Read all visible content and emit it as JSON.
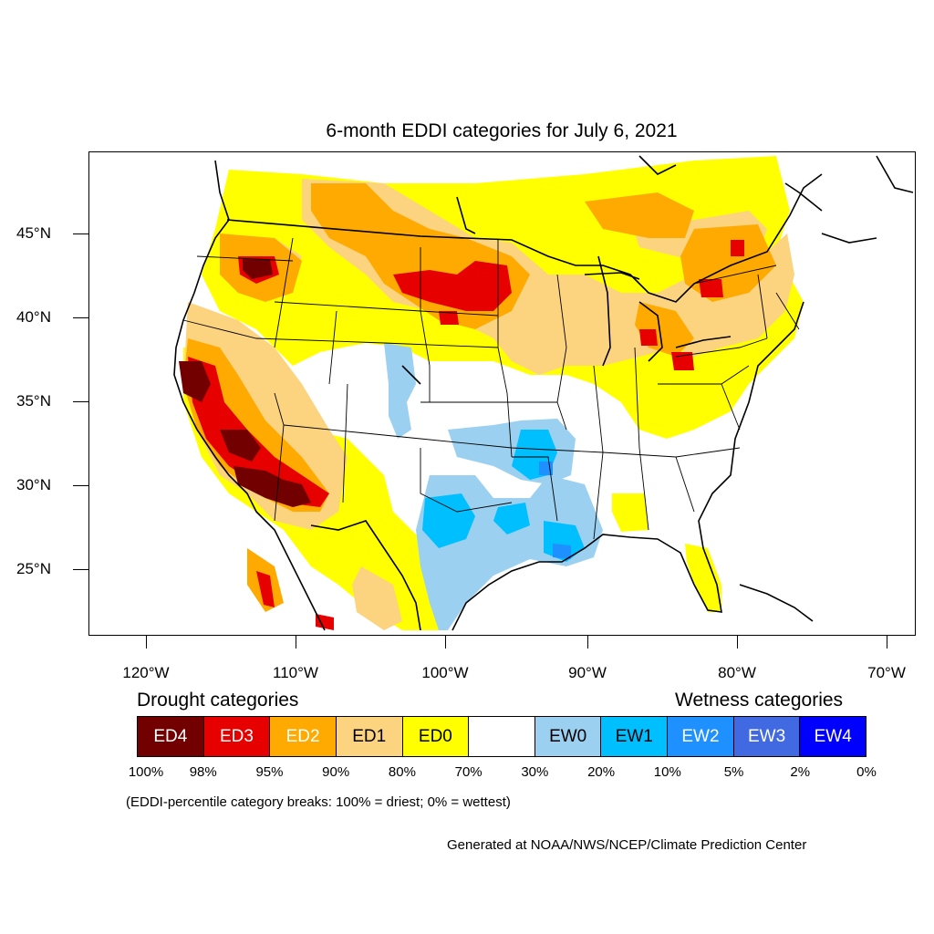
{
  "title": "6-month EDDI categories for July 6, 2021",
  "lat_labels": [
    "45°N",
    "40°N",
    "35°N",
    "30°N",
    "25°N"
  ],
  "lon_labels": [
    "120°W",
    "110°W",
    "100°W",
    "90°W",
    "80°W",
    "70°W"
  ],
  "legend": {
    "drought_heading": "Drought categories",
    "wetness_heading": "Wetness categories",
    "categories": [
      {
        "label": "ED4",
        "color": "#730000",
        "text_color": "#ffffff"
      },
      {
        "label": "ED3",
        "color": "#e60000",
        "text_color": "#ffffff"
      },
      {
        "label": "ED2",
        "color": "#ffaa00",
        "text_color": "#ffffff"
      },
      {
        "label": "ED1",
        "color": "#fcd37f",
        "text_color": "#000000"
      },
      {
        "label": "ED0",
        "color": "#ffff00",
        "text_color": "#000000"
      },
      {
        "label": "",
        "color": "#ffffff",
        "text_color": "#000000"
      },
      {
        "label": "EW0",
        "color": "#9bd0f0",
        "text_color": "#000000"
      },
      {
        "label": "EW1",
        "color": "#00bfff",
        "text_color": "#000000"
      },
      {
        "label": "EW2",
        "color": "#1e90ff",
        "text_color": "#ffffff"
      },
      {
        "label": "EW3",
        "color": "#4169e1",
        "text_color": "#ffffff"
      },
      {
        "label": "EW4",
        "color": "#0000ff",
        "text_color": "#ffffff"
      }
    ],
    "percentiles": [
      "100%",
      "98%",
      "95%",
      "90%",
      "80%",
      "70%",
      "30%",
      "20%",
      "10%",
      "5%",
      "2%",
      "0%"
    ]
  },
  "note": "(EDDI-percentile category breaks: 100% = driest; 0% = wettest)",
  "credit": "Generated at NOAA/NWS/NCEP/Climate Prediction Center"
}
